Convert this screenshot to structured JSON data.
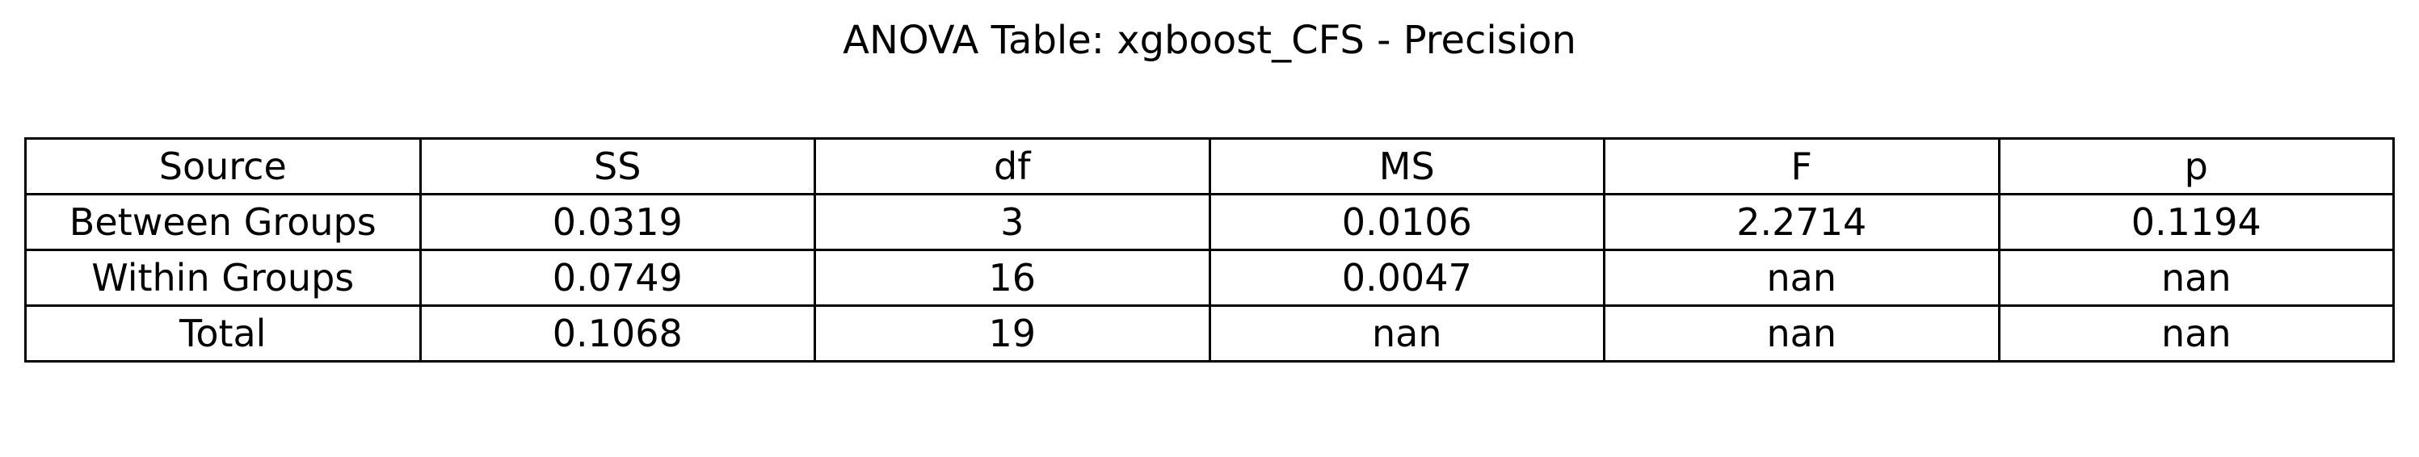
{
  "title": "ANOVA Table: xgboost_CFS - Precision",
  "chart_data": {
    "type": "table",
    "title": "ANOVA Table: xgboost_CFS - Precision",
    "columns": [
      "Source",
      "SS",
      "df",
      "MS",
      "F",
      "p"
    ],
    "rows": [
      [
        "Between Groups",
        "0.0319",
        "3",
        "0.0106",
        "2.2714",
        "0.1194"
      ],
      [
        "Within Groups",
        "0.0749",
        "16",
        "0.0047",
        "nan",
        "nan"
      ],
      [
        "Total",
        "0.1068",
        "19",
        "nan",
        "nan",
        "nan"
      ]
    ]
  }
}
